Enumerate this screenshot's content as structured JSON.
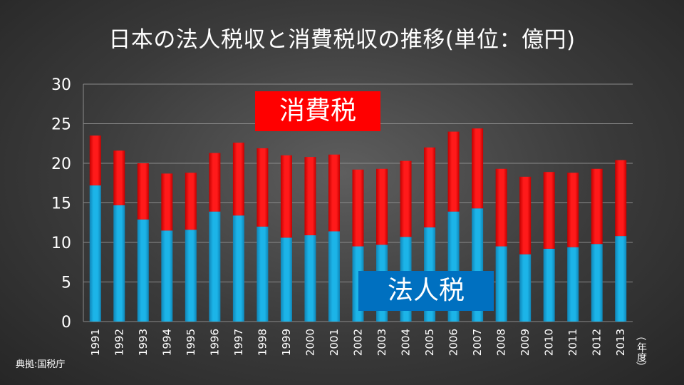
{
  "title": "日本の法人税収と消費税収の推移(単位：億円)",
  "source": "典拠:国税庁",
  "x_unit": "年度",
  "x_unit_paren_open": "︵",
  "x_unit_paren_close": "︶",
  "series_labels": {
    "consumption": "消費税",
    "corporate": "法人税"
  },
  "colors": {
    "corporate": "#1cb4e8",
    "consumption": "#ff1a1a",
    "grid": "#8a8a8a",
    "text": "#ffffff"
  },
  "chart_data": {
    "type": "bar",
    "stacked": true,
    "title": "日本の法人税収と消費税収の推移(単位：億円)",
    "xlabel": "年度",
    "ylabel": "",
    "ylim": [
      0,
      30
    ],
    "yticks": [
      0,
      5,
      10,
      15,
      20,
      25,
      30
    ],
    "grid": true,
    "categories": [
      "1991",
      "1992",
      "1993",
      "1994",
      "1995",
      "1996",
      "1997",
      "1998",
      "1999",
      "2000",
      "2001",
      "2002",
      "2003",
      "2004",
      "2005",
      "2006",
      "2007",
      "2008",
      "2009",
      "2010",
      "2011",
      "2012",
      "2013"
    ],
    "series": [
      {
        "name": "法人税",
        "values": [
          17.2,
          14.7,
          12.9,
          11.5,
          11.6,
          13.9,
          13.4,
          12.0,
          10.6,
          10.9,
          11.4,
          9.5,
          9.7,
          10.7,
          11.9,
          13.9,
          14.3,
          9.5,
          8.5,
          9.2,
          9.4,
          9.8,
          10.8
        ]
      },
      {
        "name": "消費税",
        "values": [
          6.3,
          6.9,
          7.1,
          7.2,
          7.2,
          7.4,
          9.2,
          9.9,
          10.4,
          9.9,
          9.7,
          9.7,
          9.6,
          9.6,
          10.1,
          10.1,
          10.1,
          9.8,
          9.8,
          9.7,
          9.4,
          9.5,
          9.6
        ]
      }
    ]
  }
}
